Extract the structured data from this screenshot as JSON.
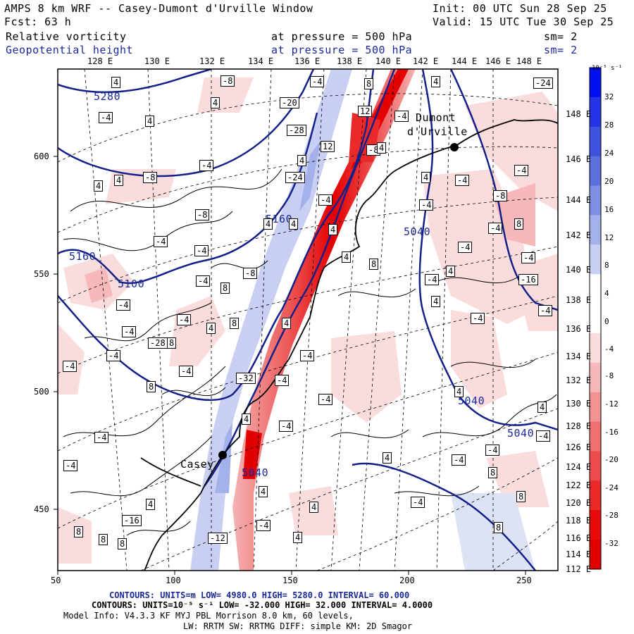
{
  "header": {
    "title": "AMPS 8 km WRF -- Casey-Dumont d'Urville Window",
    "init": "Init: 00 UTC Sun 28 Sep 25",
    "fcst": "Fcst:   63 h",
    "valid": "Valid: 15 UTC Tue 30 Sep 25"
  },
  "fields": [
    {
      "name": "Relative vorticity",
      "pressure": "at pressure =  500 hPa",
      "sm": "sm= 2",
      "color": "#000000"
    },
    {
      "name": "Geopotential height",
      "pressure": "at pressure =  500 hPa",
      "sm": "sm= 2",
      "color": "#1a2a9a"
    }
  ],
  "top_longitudes": [
    "128 E",
    "130 E",
    "132 E",
    "134 E",
    "136 E",
    "138 E",
    "140 E",
    "142 E",
    "144 E",
    "146 E",
    "148 E"
  ],
  "right_longitudes": [
    "148 E",
    "146 E",
    "144 E",
    "142 E",
    "140 E",
    "138 E",
    "136 E",
    "134 E",
    "132 E",
    "130 E",
    "128 E",
    "126 E",
    "124 E",
    "122 E",
    "120 E",
    "118 E",
    "116 E",
    "114 E",
    "112 E"
  ],
  "x_axis": [
    "50",
    "100",
    "150",
    "200",
    "250"
  ],
  "y_axis": [
    "600",
    "550",
    "500",
    "450"
  ],
  "places": [
    {
      "name": "Dumont",
      "line2": "d'Urville"
    },
    {
      "name": "Casey",
      "line2": ""
    }
  ],
  "height_labels": [
    "5280",
    "5160",
    "5160",
    "5100",
    "5040",
    "5040",
    "5040",
    "5040"
  ],
  "vort_labels": [
    "4",
    "-8",
    "-4",
    "8",
    "4",
    "-24",
    "4",
    "-20",
    "12",
    "-4",
    "-4",
    "4",
    "-28",
    "-8",
    "4",
    "12",
    "4",
    "-4",
    "-8",
    "4",
    "4",
    "-24",
    "4",
    "-4",
    "-4",
    "-4",
    "-8",
    "-4",
    "-8",
    "4",
    "4",
    "4",
    "-4",
    "8",
    "-4",
    "-4",
    "4",
    "8",
    "-4",
    "-4",
    "-8",
    "4",
    "-4",
    "-16",
    "-4",
    "8",
    "-4",
    "4",
    "-4",
    "-4",
    "8",
    "4",
    "4",
    "-4",
    "-4",
    "-28",
    "8",
    "-4",
    "-4",
    "-4",
    "-4",
    "-32",
    "-4",
    "8",
    "-4",
    "4",
    "4",
    "4",
    "-4",
    "-4",
    "-4",
    "-4",
    "4",
    "-4",
    "8",
    "-4",
    "8",
    "4",
    "4",
    "4",
    "-4",
    "-16",
    "-4",
    "8",
    "4",
    "8",
    "8",
    "-12",
    "8"
  ],
  "colorbar": {
    "unit": "10⁻⁵ s⁻¹",
    "ticks": [
      "32",
      "28",
      "24",
      "20",
      "16",
      "12",
      "8",
      "4",
      "0",
      "-4",
      "-8",
      "-12",
      "-16",
      "-20",
      "-24",
      "-28",
      "-32"
    ],
    "colors": [
      "#0010f0",
      "#2433e6",
      "#3f52de",
      "#5c6fdc",
      "#7f8fe2",
      "#a3b0ea",
      "#c8cff2",
      "#ffffff",
      "#ffffff",
      "#fbdcdc",
      "#f6b8b8",
      "#f29393",
      "#ef7070",
      "#ec4c4c",
      "#ea2a2a",
      "#e80a0a",
      "#e00000"
    ]
  },
  "footer": {
    "contours1": "CONTOURS:  UNITS=m  LOW=  4980.0       HIGH=  5280.0       INTERVAL=  60.000",
    "contours2": "CONTOURS:  UNITS=10⁻⁵ s⁻¹  LOW= -32.000       HIGH=  32.000    INTERVAL=  4.0000",
    "model1": "Model Info: V4.3.3   KF      MYJ PBL  Morrison           8.0 km,  60 levels,",
    "model2": "LW: RRTM SW: RRTMG   DIFF: simple KM: 2D Smagor"
  }
}
